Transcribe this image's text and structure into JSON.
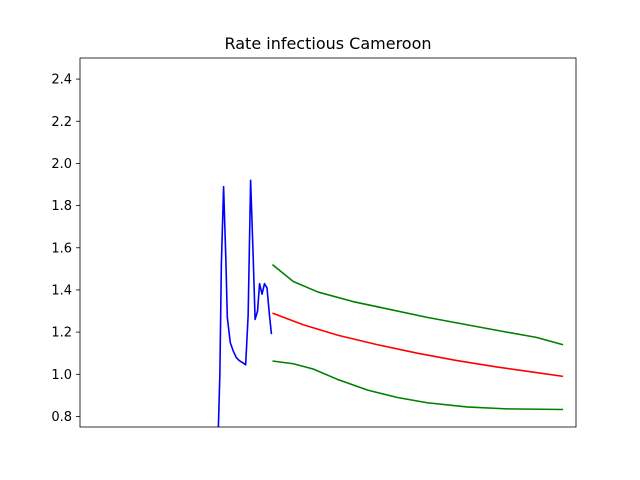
{
  "chart_data": {
    "type": "line",
    "title": "Rate infectious Cameroon",
    "xlabel": "",
    "ylabel": "",
    "x_ticks_visible": false,
    "xlim": [
      0,
      100
    ],
    "ylim": [
      0.75,
      2.5
    ],
    "yticks": [
      0.8,
      1.0,
      1.2,
      1.4,
      1.6,
      1.8,
      2.0,
      2.2,
      2.4
    ],
    "ytick_labels": [
      "0.8",
      "1.0",
      "1.2",
      "1.4",
      "1.6",
      "1.8",
      "2.0",
      "2.2",
      "2.4"
    ],
    "grid": false,
    "legend": false,
    "series": [
      {
        "color": "#0000ff",
        "role": "observed",
        "points": [
          [
            27.9,
            0.75
          ],
          [
            28.2,
            1.0
          ],
          [
            28.5,
            1.52
          ],
          [
            28.95,
            1.89
          ],
          [
            29.4,
            1.55
          ],
          [
            29.7,
            1.27
          ],
          [
            30.3,
            1.15
          ],
          [
            30.9,
            1.11
          ],
          [
            31.5,
            1.08
          ],
          [
            32.1,
            1.065
          ],
          [
            32.8,
            1.055
          ],
          [
            33.4,
            1.045
          ],
          [
            33.9,
            1.28
          ],
          [
            34.4,
            1.92
          ],
          [
            34.9,
            1.57
          ],
          [
            35.3,
            1.26
          ],
          [
            35.8,
            1.3
          ],
          [
            36.2,
            1.43
          ],
          [
            36.7,
            1.38
          ],
          [
            37.2,
            1.43
          ],
          [
            37.7,
            1.41
          ],
          [
            38.2,
            1.28
          ],
          [
            38.6,
            1.19
          ]
        ]
      },
      {
        "color": "#ff0000",
        "role": "projection",
        "points": [
          [
            38.8,
            1.29
          ],
          [
            45,
            1.235
          ],
          [
            52,
            1.185
          ],
          [
            60,
            1.14
          ],
          [
            68,
            1.1
          ],
          [
            76,
            1.065
          ],
          [
            84,
            1.035
          ],
          [
            92,
            1.008
          ],
          [
            97.4,
            0.99
          ]
        ]
      },
      {
        "color": "#008000",
        "role": "upper-bound",
        "points": [
          [
            38.8,
            1.52
          ],
          [
            43,
            1.44
          ],
          [
            48,
            1.39
          ],
          [
            55,
            1.345
          ],
          [
            62,
            1.31
          ],
          [
            70,
            1.27
          ],
          [
            78,
            1.235
          ],
          [
            86,
            1.2
          ],
          [
            92,
            1.175
          ],
          [
            97.4,
            1.14
          ]
        ]
      },
      {
        "color": "#008000",
        "role": "lower-bound",
        "points": [
          [
            38.8,
            1.063
          ],
          [
            43,
            1.05
          ],
          [
            47,
            1.025
          ],
          [
            52,
            0.975
          ],
          [
            58,
            0.925
          ],
          [
            64,
            0.89
          ],
          [
            70,
            0.865
          ],
          [
            78,
            0.845
          ],
          [
            86,
            0.836
          ],
          [
            97.4,
            0.833
          ]
        ]
      }
    ]
  }
}
